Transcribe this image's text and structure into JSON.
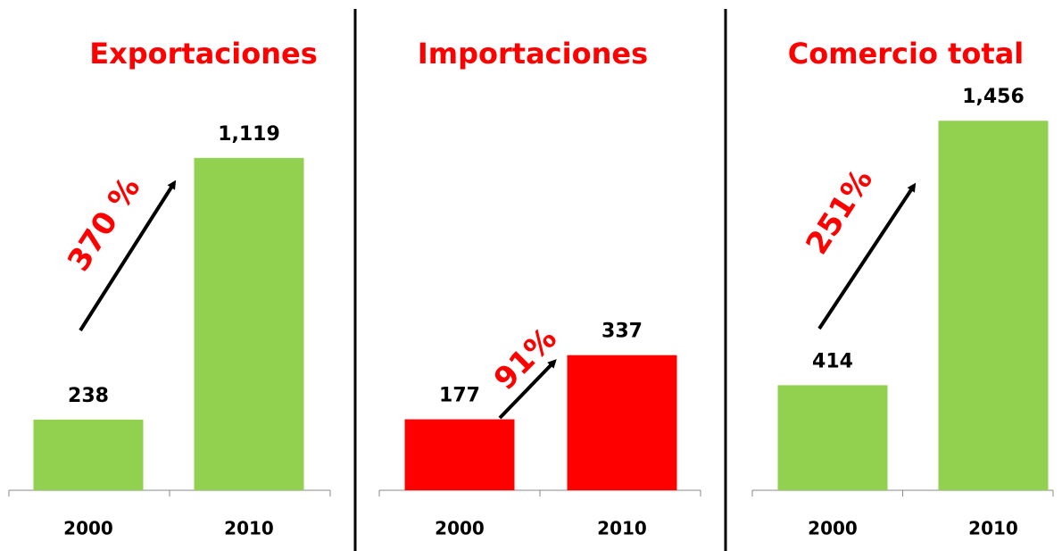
{
  "chart_data": [
    {
      "type": "bar",
      "title": "Exportaciones",
      "categories": [
        "2000",
        "2010"
      ],
      "values": [
        238,
        1119
      ],
      "value_labels": [
        "238",
        "1,119"
      ],
      "color": "#92d050",
      "ylim": [
        0,
        1350
      ],
      "annotation": "370 %"
    },
    {
      "type": "bar",
      "title": "Importaciones",
      "categories": [
        "2000",
        "2010"
      ],
      "values": [
        177,
        337
      ],
      "value_labels": [
        "177",
        "337"
      ],
      "color": "#ff0000",
      "ylim": [
        0,
        1000
      ],
      "annotation": "91%"
    },
    {
      "type": "bar",
      "title": "Comercio total",
      "categories": [
        "2000",
        "2010"
      ],
      "values": [
        414,
        1456
      ],
      "value_labels": [
        "414",
        "1,456"
      ],
      "color": "#92d050",
      "ylim": [
        0,
        1580
      ],
      "annotation": "251%"
    }
  ]
}
